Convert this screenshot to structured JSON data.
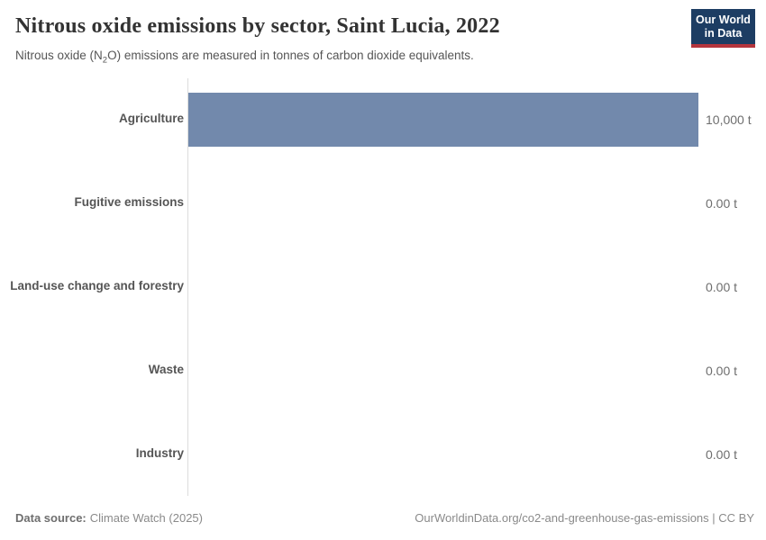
{
  "header": {
    "title": "Nitrous oxide emissions by sector, Saint Lucia, 2022",
    "subtitle": {
      "prefix": "Nitrous oxide (N",
      "sub": "2",
      "suffix": "O) emissions are measured in tonnes of carbon dioxide equivalents."
    },
    "logo": {
      "line1": "Our World",
      "line2": "in Data",
      "bg_color": "#1d3d63",
      "accent_color": "#b5353d"
    }
  },
  "chart_data": {
    "type": "bar",
    "orientation": "horizontal",
    "title": "Nitrous oxide emissions by sector, Saint Lucia, 2022",
    "categories": [
      "Agriculture",
      "Fugitive emissions",
      "Land-use change and forestry",
      "Waste",
      "Industry"
    ],
    "values": [
      10000,
      0,
      0,
      0,
      0
    ],
    "value_labels": [
      "10,000 t",
      "0.00 t",
      "0.00 t",
      "0.00 t",
      "0.00 t"
    ],
    "unit": "t",
    "xlim": [
      0,
      10000
    ],
    "bar_color": "#7289ac",
    "axis_color": "#dcdcdc",
    "grid": false,
    "legend": false
  },
  "footer": {
    "source_label": "Data source:",
    "source_value": "Climate Watch (2025)",
    "credit": "OurWorldinData.org/co2-and-greenhouse-gas-emissions | CC BY"
  }
}
